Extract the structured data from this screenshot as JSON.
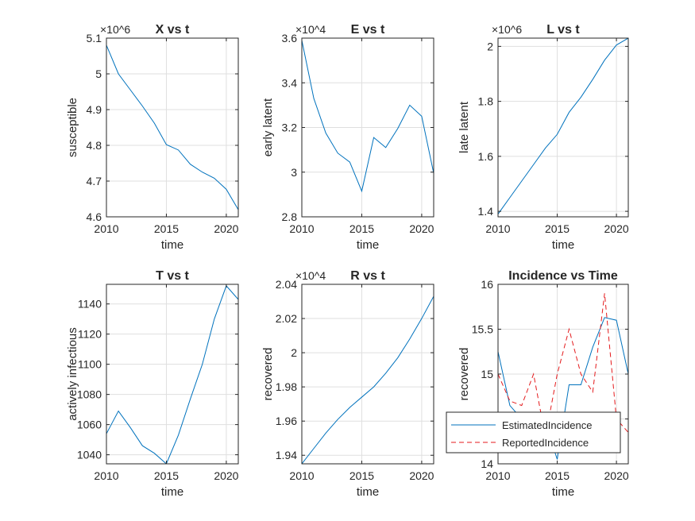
{
  "chart_data": [
    {
      "type": "line",
      "title": "X vs t",
      "xlabel": "time",
      "ylabel": "susceptible",
      "xlim": [
        2010,
        2021
      ],
      "ylim": [
        4.6,
        5.1
      ],
      "xticks": [
        2010,
        2015,
        2020
      ],
      "yticks": [
        4.6,
        4.7,
        4.8,
        4.9,
        5,
        5.1
      ],
      "ytick_labels": [
        "4.6",
        "4.7",
        "4.8",
        "4.9",
        "5",
        "5.1"
      ],
      "exponent_label": "×10^6",
      "grid": true,
      "x": [
        2010,
        2011,
        2012,
        2013,
        2014,
        2015,
        2016,
        2017,
        2018,
        2019,
        2020,
        2021
      ],
      "series": [
        {
          "color": "#0072BD",
          "dash": "solid",
          "values": [
            5.08,
            5.0,
            4.955,
            4.91,
            4.862,
            4.802,
            4.787,
            4.747,
            4.725,
            4.708,
            4.677,
            4.62
          ]
        }
      ]
    },
    {
      "type": "line",
      "title": "E vs t",
      "xlabel": "time",
      "ylabel": "early latent",
      "xlim": [
        2010,
        2021
      ],
      "ylim": [
        2.8,
        3.6
      ],
      "xticks": [
        2010,
        2015,
        2020
      ],
      "yticks": [
        2.8,
        3,
        3.2,
        3.4,
        3.6
      ],
      "ytick_labels": [
        "2.8",
        "3",
        "3.2",
        "3.4",
        "3.6"
      ],
      "exponent_label": "×10^4",
      "grid": true,
      "x": [
        2010,
        2011,
        2012,
        2013,
        2014,
        2015,
        2016,
        2017,
        2018,
        2019,
        2020,
        2021
      ],
      "series": [
        {
          "color": "#0072BD",
          "dash": "solid",
          "values": [
            3.59,
            3.33,
            3.175,
            3.085,
            3.045,
            2.915,
            3.155,
            3.11,
            3.195,
            3.3,
            3.25,
            2.995
          ]
        }
      ]
    },
    {
      "type": "line",
      "title": "L vs t",
      "xlabel": "time",
      "ylabel": "late latent",
      "xlim": [
        2010,
        2021
      ],
      "ylim": [
        1.38,
        2.03
      ],
      "xticks": [
        2010,
        2015,
        2020
      ],
      "yticks": [
        1.4,
        1.6,
        1.8,
        2
      ],
      "ytick_labels": [
        "1.4",
        "1.6",
        "1.8",
        "2"
      ],
      "exponent_label": "×10^6",
      "grid": true,
      "x": [
        2010,
        2011,
        2012,
        2013,
        2014,
        2015,
        2016,
        2017,
        2018,
        2019,
        2020,
        2021
      ],
      "series": [
        {
          "color": "#0072BD",
          "dash": "solid",
          "values": [
            1.39,
            1.45,
            1.51,
            1.57,
            1.63,
            1.68,
            1.76,
            1.815,
            1.88,
            1.95,
            2.005,
            2.03
          ]
        }
      ]
    },
    {
      "type": "line",
      "title": "T vs t",
      "xlabel": "time",
      "ylabel": "actively infectious",
      "xlim": [
        2010,
        2021
      ],
      "ylim": [
        1034,
        1153
      ],
      "xticks": [
        2010,
        2015,
        2020
      ],
      "yticks": [
        1040,
        1060,
        1080,
        1100,
        1120,
        1140
      ],
      "ytick_labels": [
        "1040",
        "1060",
        "1080",
        "1100",
        "1120",
        "1140"
      ],
      "exponent_label": "",
      "grid": true,
      "x": [
        2010,
        2011,
        2012,
        2013,
        2014,
        2015,
        2016,
        2017,
        2018,
        2019,
        2020,
        2021
      ],
      "series": [
        {
          "color": "#0072BD",
          "dash": "solid",
          "values": [
            1054,
            1069,
            1058,
            1046,
            1041,
            1034,
            1053,
            1077,
            1100,
            1130,
            1152,
            1143
          ]
        }
      ]
    },
    {
      "type": "line",
      "title": "R vs t",
      "xlabel": "time",
      "ylabel": "recovered",
      "xlim": [
        2010,
        2021
      ],
      "ylim": [
        1.935,
        2.04
      ],
      "xticks": [
        2010,
        2015,
        2020
      ],
      "yticks": [
        1.94,
        1.96,
        1.98,
        2,
        2.02,
        2.04
      ],
      "ytick_labels": [
        "1.94",
        "1.96",
        "1.98",
        "2",
        "2.02",
        "2.04"
      ],
      "exponent_label": "×10^4",
      "grid": true,
      "x": [
        2010,
        2011,
        2012,
        2013,
        2014,
        2015,
        2016,
        2017,
        2018,
        2019,
        2020,
        2021
      ],
      "series": [
        {
          "color": "#0072BD",
          "dash": "solid",
          "values": [
            1.935,
            1.944,
            1.953,
            1.961,
            1.968,
            1.974,
            1.98,
            1.988,
            1.997,
            2.008,
            2.02,
            2.033
          ]
        }
      ]
    },
    {
      "type": "line",
      "title": "Incidence vs Time",
      "xlabel": "time",
      "ylabel": "recovered",
      "xlim": [
        2010,
        2021
      ],
      "ylim": [
        14,
        16
      ],
      "xticks": [
        2010,
        2015,
        2020
      ],
      "yticks": [
        14,
        14.5,
        15,
        15.5,
        16
      ],
      "ytick_labels": [
        "14",
        "14.5",
        "15",
        "15.5",
        "16"
      ],
      "exponent_label": "",
      "grid": true,
      "legend": "bottom-left",
      "x": [
        2010,
        2011,
        2012,
        2013,
        2014,
        2015,
        2016,
        2017,
        2018,
        2019,
        2020,
        2021
      ],
      "series": [
        {
          "name": "EstimatedIncidence",
          "color": "#0072BD",
          "dash": "solid",
          "values": [
            15.25,
            14.65,
            14.5,
            14.3,
            14.45,
            14.05,
            14.88,
            14.88,
            15.3,
            15.63,
            15.6,
            15.0
          ]
        },
        {
          "name": "ReportedIncidence",
          "color": "#E41A1C",
          "dash": "dashed",
          "values": [
            15.0,
            14.7,
            14.65,
            15.0,
            14.3,
            15.0,
            15.5,
            15.0,
            14.8,
            15.9,
            14.5,
            14.35
          ]
        }
      ]
    }
  ]
}
